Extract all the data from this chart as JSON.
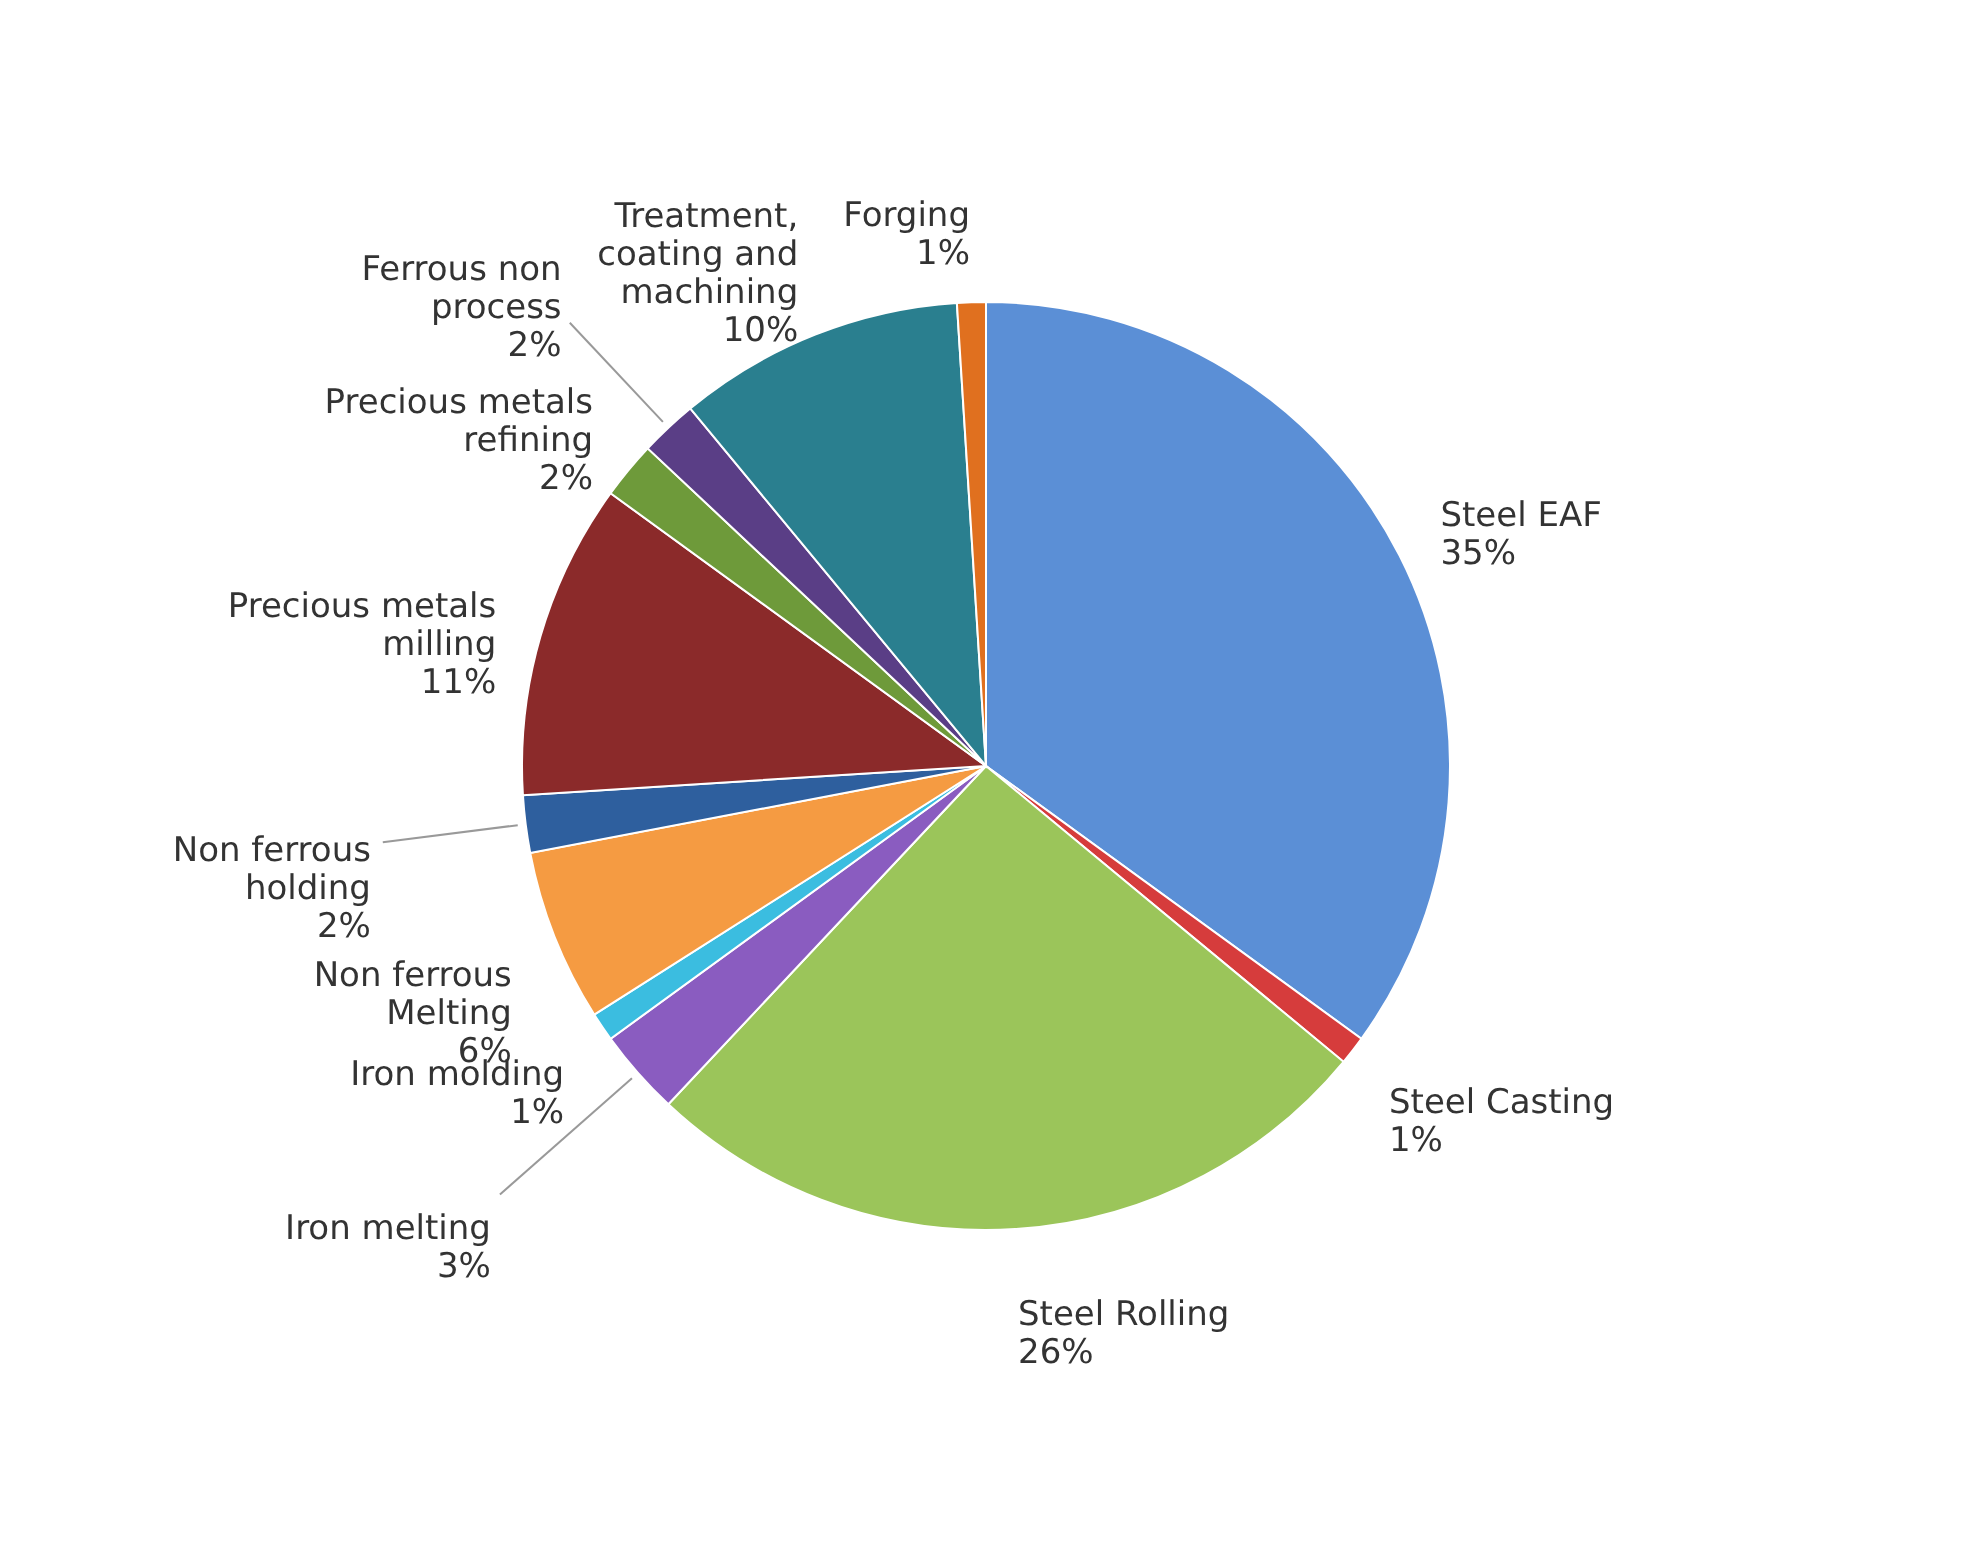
{
  "chart_data": {
    "type": "pie",
    "categories": [
      "Steel EAF",
      "Steel Casting",
      "Steel Rolling",
      "Iron melting",
      "Iron molding",
      "Non ferrous Melting",
      "Non ferrous holding",
      "Precious metals milling",
      "Precious metals refining",
      "Ferrous non process",
      "Treatment, coating and machining",
      "Forging"
    ],
    "values": [
      35,
      1,
      26,
      3,
      1,
      6,
      2,
      11,
      2,
      2,
      10,
      1
    ],
    "value_labels": [
      "35%",
      "1%",
      "26%",
      "3%",
      "1%",
      "6%",
      "2%",
      "11%",
      "2%",
      "2%",
      "10%",
      "1%"
    ],
    "colors": [
      "#5b8fd6",
      "#d63c3c",
      "#9bc55a",
      "#8a5cc0",
      "#3bbde0",
      "#f59b42",
      "#2e5f9e",
      "#8b2a2a",
      "#6e9a3a",
      "#5a3e86",
      "#2a7f8f",
      "#e0701f"
    ],
    "legend": false
  }
}
